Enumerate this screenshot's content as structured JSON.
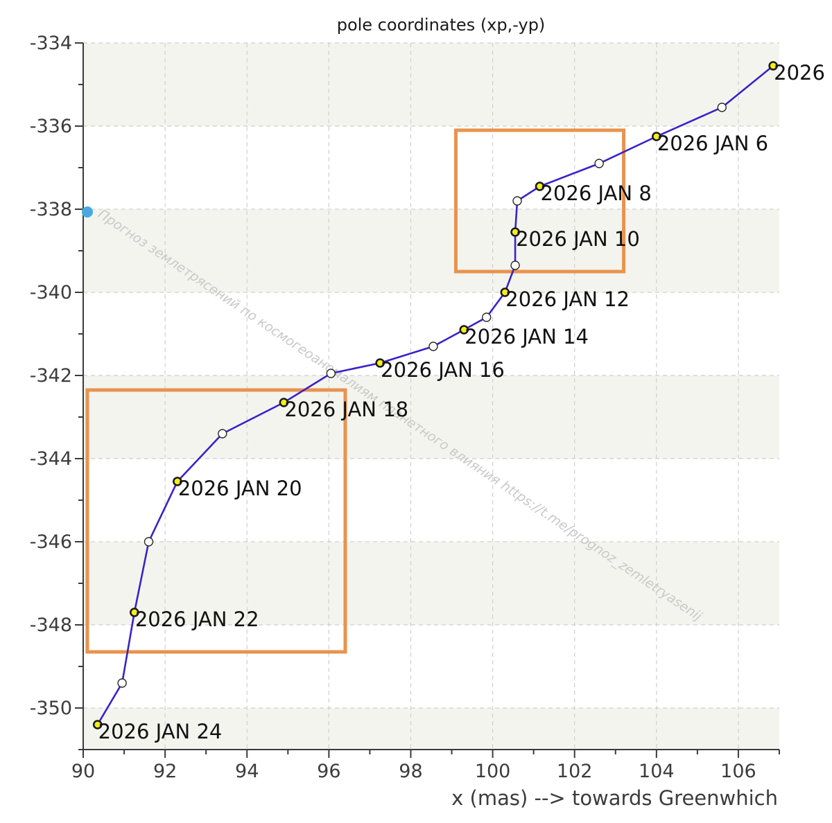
{
  "colors": {
    "line": "#3a22c8",
    "marker_date": "#f4ee1a",
    "marker_plain": "#ffffff",
    "box": "#e8934e",
    "band": "#f4f4ef",
    "grid": "#cfcfcf",
    "watermark_dot": "#4aa8e0"
  },
  "chart_data": {
    "type": "line",
    "title": "pole coordinates (xp,-yp)",
    "xlabel": "x (mas) --> towards Greenwhich",
    "ylabel": "",
    "xlim": [
      90,
      107
    ],
    "ylim": [
      -351,
      -334
    ],
    "x_ticks": [
      90,
      92,
      94,
      96,
      98,
      100,
      102,
      104,
      106
    ],
    "y_ticks": [
      -334,
      -336,
      -338,
      -340,
      -342,
      -344,
      -346,
      -348,
      -350
    ],
    "grid": true,
    "series": [
      {
        "points": [
          {
            "x": 106.85,
            "y": -334.55,
            "label": "2026",
            "dated": true
          },
          {
            "x": 105.6,
            "y": -335.55,
            "label": "",
            "dated": false
          },
          {
            "x": 104.0,
            "y": -336.25,
            "label": "2026 JAN 6",
            "dated": true
          },
          {
            "x": 102.6,
            "y": -336.9,
            "label": "",
            "dated": false
          },
          {
            "x": 101.15,
            "y": -337.45,
            "label": "2026 JAN 8",
            "dated": true
          },
          {
            "x": 100.6,
            "y": -337.8,
            "label": "",
            "dated": false
          },
          {
            "x": 100.55,
            "y": -338.55,
            "label": "2026 JAN 10",
            "dated": true
          },
          {
            "x": 100.55,
            "y": -339.35,
            "label": "",
            "dated": false
          },
          {
            "x": 100.3,
            "y": -340.0,
            "label": "2026 JAN 12",
            "dated": true
          },
          {
            "x": 99.85,
            "y": -340.6,
            "label": "",
            "dated": false
          },
          {
            "x": 99.3,
            "y": -340.9,
            "label": "2026 JAN 14",
            "dated": true
          },
          {
            "x": 98.55,
            "y": -341.3,
            "label": "",
            "dated": false
          },
          {
            "x": 97.25,
            "y": -341.7,
            "label": "2026 JAN 16",
            "dated": true
          },
          {
            "x": 96.05,
            "y": -341.95,
            "label": "",
            "dated": false
          },
          {
            "x": 94.9,
            "y": -342.65,
            "label": "2026 JAN 18",
            "dated": true
          },
          {
            "x": 93.4,
            "y": -343.4,
            "label": "",
            "dated": false
          },
          {
            "x": 92.3,
            "y": -344.55,
            "label": "2026 JAN 20",
            "dated": true
          },
          {
            "x": 91.6,
            "y": -346.0,
            "label": "",
            "dated": false
          },
          {
            "x": 91.25,
            "y": -347.7,
            "label": "2026 JAN 22",
            "dated": true
          },
          {
            "x": 90.95,
            "y": -349.4,
            "label": "",
            "dated": false
          },
          {
            "x": 90.35,
            "y": -350.4,
            "label": "2026 JAN 24",
            "dated": true
          }
        ]
      }
    ],
    "highlight_boxes": [
      {
        "x0": 99.1,
        "x1": 103.2,
        "y0": -339.5,
        "y1": -336.1
      },
      {
        "x0": 90.1,
        "x1": 96.4,
        "y0": -348.65,
        "y1": -342.35
      }
    ]
  },
  "watermark": {
    "text": "Прогноз землетрясений по космогеоаномалиям планетного влияния https://t.me/prognoz_zemletryasenij"
  }
}
